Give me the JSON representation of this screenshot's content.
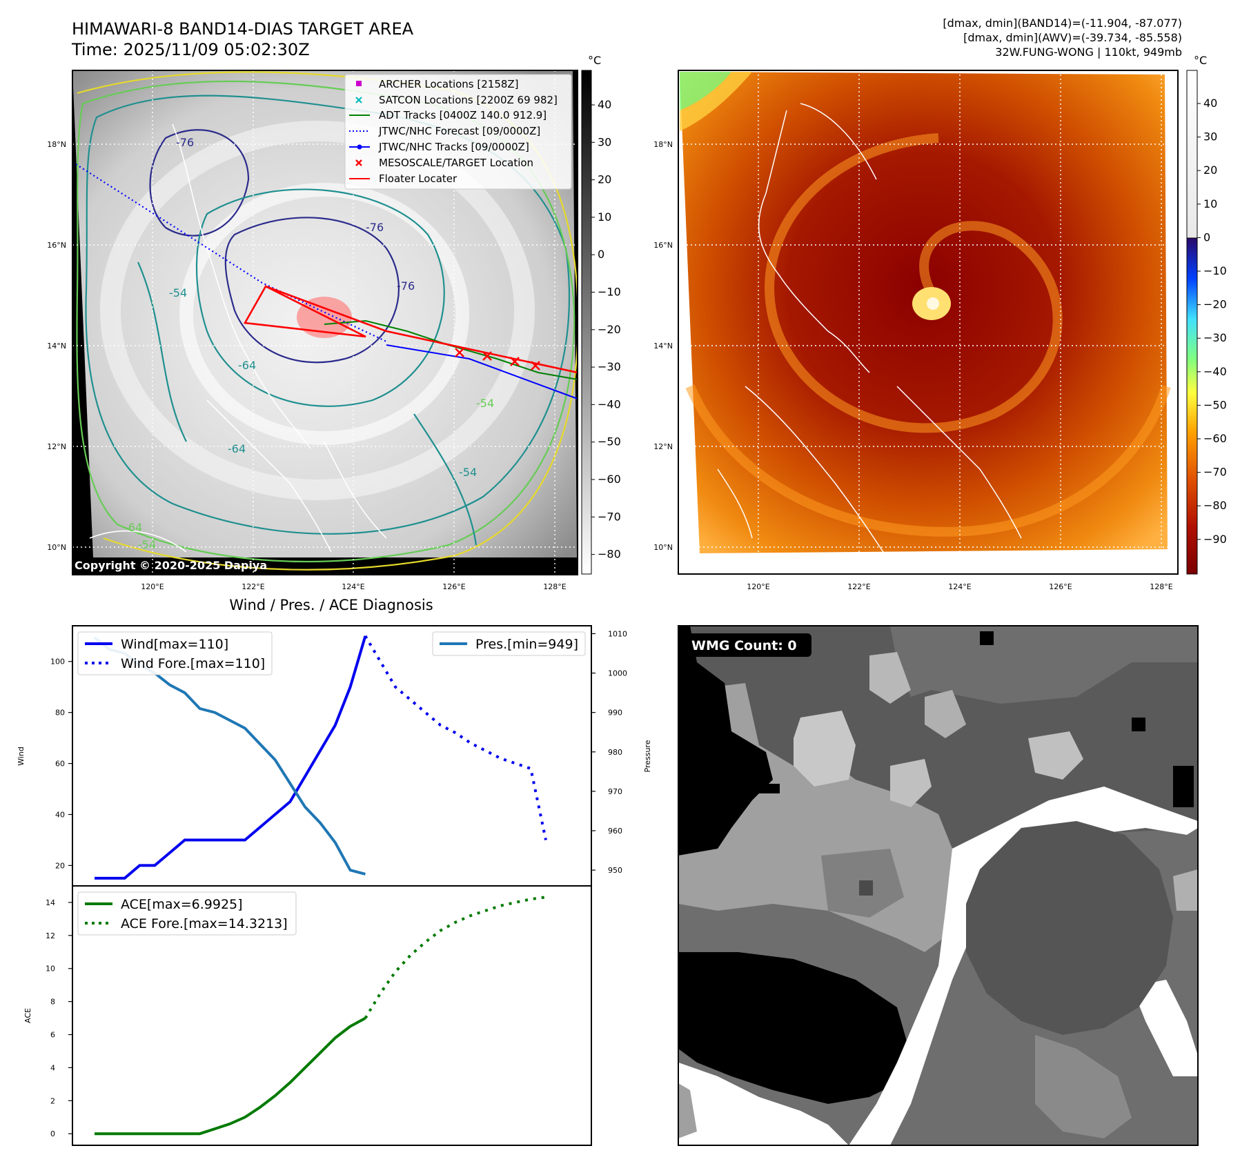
{
  "header": {
    "title_line1": "HIMAWARI-8 BAND14-DIAS TARGET AREA",
    "title_line2": "Time: 2025/11/09 05:02:30Z",
    "info_line1": "[dmax, dmin](BAND14)=(-11.904, -87.077)",
    "info_line2": "[dmax, dmin](AWV)=(-39.734, -85.558)",
    "info_line3": "32W.FUNG-WONG | 110kt, 949mb"
  },
  "colors": {
    "wind": "#0000ee",
    "pressure": "#1f77b4",
    "ace": "#007a00",
    "jtwc_track": "#0000ff",
    "adt_track": "#008000",
    "floater": "#ff0000",
    "archer": "#cc00cc",
    "satcon": "#00bbbb",
    "ir_cold": "#8b0000",
    "ir_warm": "#ff8c00"
  },
  "map_left": {
    "unit_label": "°C",
    "colorbar_ticks": [
      "40",
      "30",
      "20",
      "10",
      "0",
      "−10",
      "−20",
      "−30",
      "−40",
      "−50",
      "−60",
      "−70",
      "−80"
    ],
    "lat_labels": [
      "18°N",
      "16°N",
      "14°N",
      "12°N",
      "10°N"
    ],
    "lon_labels": [
      "120°E",
      "122°E",
      "124°E",
      "126°E",
      "128°E"
    ],
    "legend": [
      {
        "label": "ARCHER Locations [2158Z]",
        "icon": "square-marker"
      },
      {
        "label": "SATCON Locations [2200Z 69 982]",
        "icon": "x-marker"
      },
      {
        "label": "ADT Tracks [0400Z 140.0 912.9]",
        "icon": "solid-line"
      },
      {
        "label": "JTWC/NHC Forecast [09/0000Z]",
        "icon": "dotted-line"
      },
      {
        "label": "JTWC/NHC Tracks [09/0000Z]",
        "icon": "line-dot"
      },
      {
        "label": "MESOSCALE/TARGET Location",
        "icon": "x-marker"
      },
      {
        "label": "Floater Locater",
        "icon": "solid-line"
      }
    ],
    "contour_labels": [
      "-76",
      "-54",
      "-64",
      "-76",
      "-64",
      "-54",
      "-54",
      "-76",
      "-64",
      "-54"
    ],
    "copyright": "Copyright © 2020-2025 Dapiya"
  },
  "map_right": {
    "unit_label": "°C",
    "colorbar_ticks": [
      "40",
      "30",
      "20",
      "10",
      "0",
      "−10",
      "−20",
      "−30",
      "−40",
      "−50",
      "−60",
      "−70",
      "−80",
      "−90"
    ],
    "lat_labels": [
      "18°N",
      "16°N",
      "14°N",
      "12°N",
      "10°N"
    ],
    "lon_labels": [
      "120°E",
      "122°E",
      "124°E",
      "126°E",
      "128°E"
    ]
  },
  "wmg_panel": {
    "label": "WMG Count: 0"
  },
  "chart_data": [
    {
      "type": "line",
      "title": "Wind / Pres. / ACE Diagnosis",
      "ylabel": "Wind",
      "ylim": [
        12,
        114
      ],
      "yticks": [
        20,
        40,
        60,
        80,
        100
      ],
      "series": [
        {
          "name": "Wind[max=110]",
          "style": "solid",
          "x": [
            0,
            1,
            2,
            3,
            4,
            5,
            6,
            7,
            8,
            9,
            10,
            11,
            12,
            13,
            14,
            15,
            16,
            17,
            18
          ],
          "values": [
            15,
            15,
            15,
            20,
            20,
            25,
            30,
            30,
            30,
            30,
            30,
            35,
            40,
            45,
            55,
            65,
            75,
            90,
            110
          ]
        },
        {
          "name": "Wind Fore.[max=110]",
          "style": "dotted",
          "x": [
            18,
            20,
            21,
            22,
            23,
            24,
            25,
            26,
            27,
            28,
            29,
            30
          ],
          "values": [
            110,
            90,
            85,
            80,
            75,
            72,
            68,
            65,
            62,
            60,
            58,
            30
          ]
        }
      ],
      "y2label": "Pressure",
      "y2lim": [
        946,
        1012
      ],
      "y2ticks": [
        950,
        960,
        970,
        980,
        990,
        1000,
        1010
      ],
      "series2": [
        {
          "name": "Pres.[min=949]",
          "style": "solid",
          "x": [
            0,
            1,
            2,
            3,
            4,
            5,
            6,
            7,
            8,
            9,
            10,
            11,
            12,
            13,
            14,
            15,
            16,
            17,
            18
          ],
          "values": [
            1009,
            1006,
            1005,
            1002,
            1000,
            997,
            995,
            991,
            990,
            988,
            986,
            982,
            978,
            972,
            966,
            962,
            957,
            950,
            949
          ]
        }
      ]
    },
    {
      "type": "line",
      "ylabel": "ACE",
      "ylim": [
        -0.7,
        15
      ],
      "yticks": [
        0,
        2,
        4,
        6,
        8,
        10,
        12,
        14
      ],
      "series": [
        {
          "name": "ACE[max=6.9925]",
          "style": "solid",
          "x": [
            0,
            2,
            4,
            6,
            7,
            8,
            9,
            10,
            11,
            12,
            13,
            14,
            15,
            16,
            17,
            18
          ],
          "values": [
            0,
            0,
            0,
            0,
            0,
            0.3,
            0.6,
            1.0,
            1.6,
            2.3,
            3.1,
            4.0,
            4.9,
            5.8,
            6.5,
            6.99
          ]
        },
        {
          "name": "ACE Fore.[max=14.3213]",
          "style": "dotted",
          "x": [
            18,
            19,
            20,
            21,
            22,
            23,
            24,
            25,
            26,
            27,
            28,
            29,
            30
          ],
          "values": [
            6.99,
            8.5,
            9.8,
            10.8,
            11.6,
            12.3,
            12.8,
            13.2,
            13.5,
            13.8,
            14.0,
            14.2,
            14.32
          ]
        }
      ]
    }
  ]
}
